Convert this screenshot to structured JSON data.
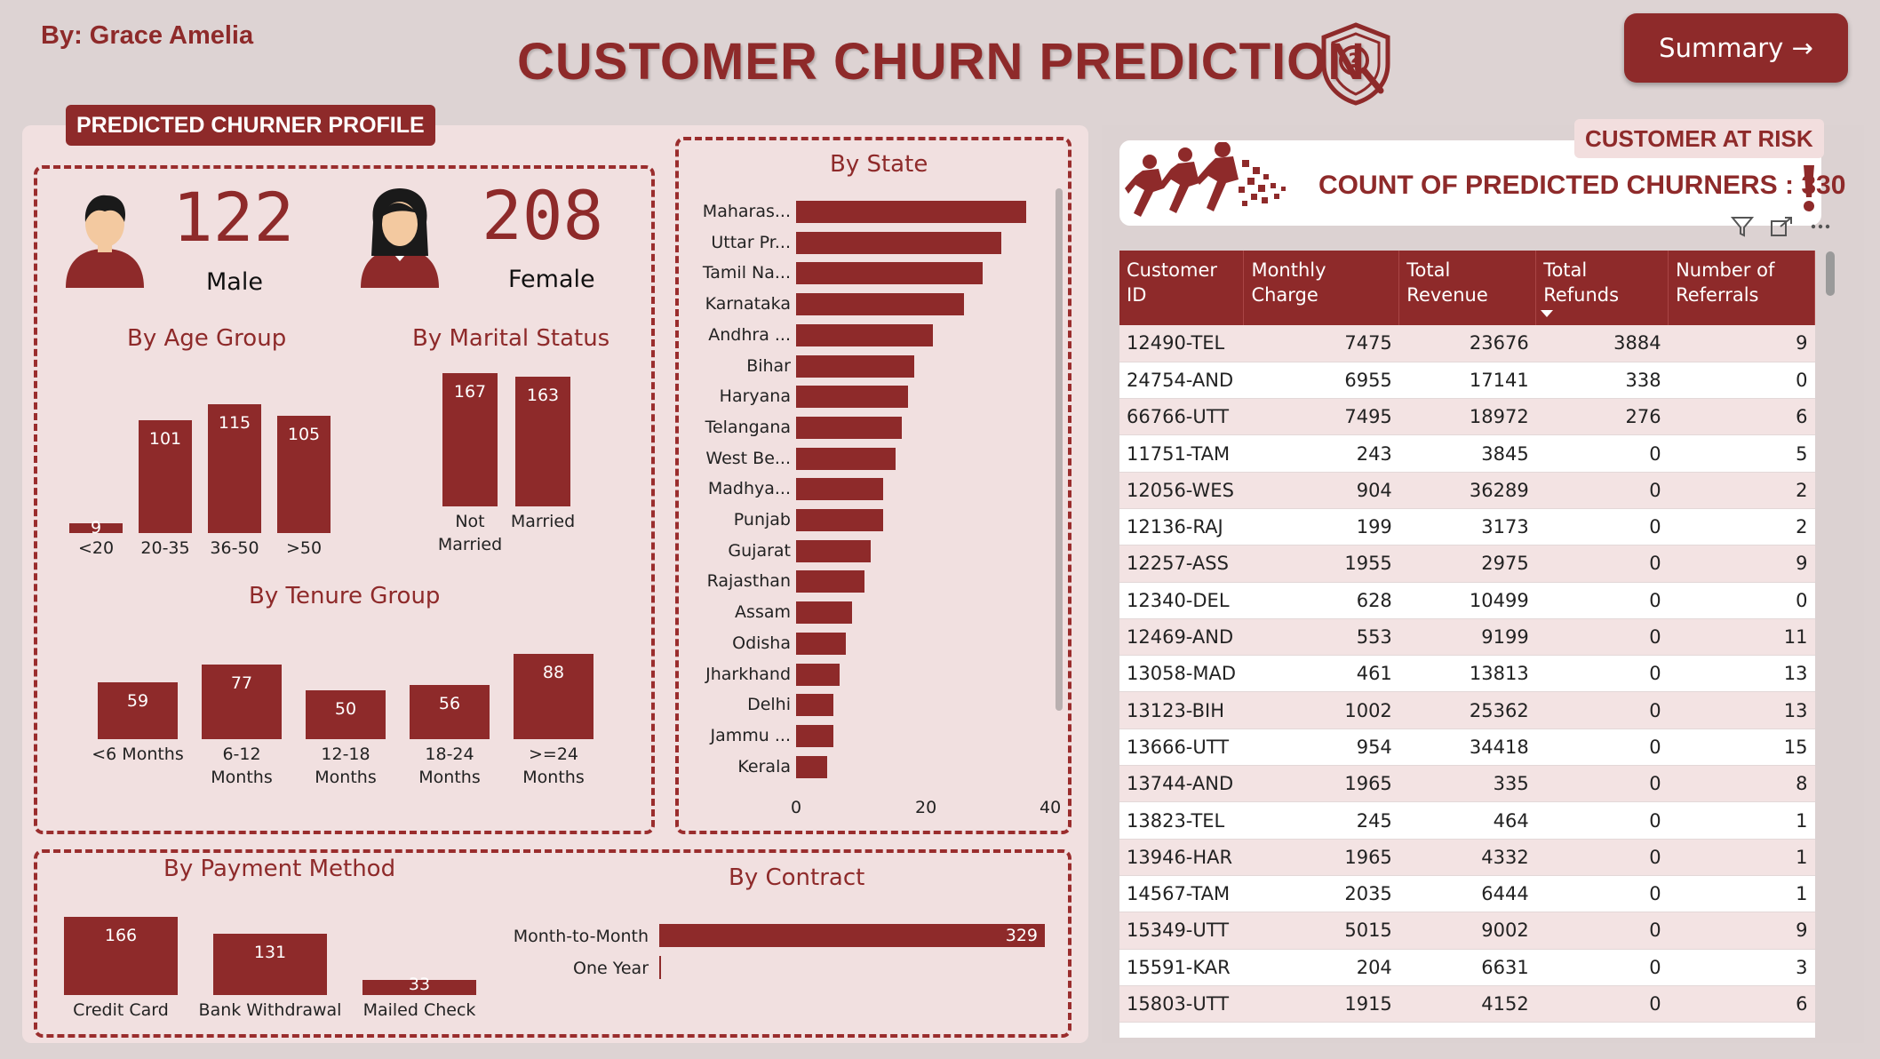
{
  "header": {
    "author": "By: Grace Amelia",
    "title": "CUSTOMER CHURN PREDICTION",
    "summary_button": "Summary →"
  },
  "profile": {
    "tag": "PREDICTED CHURNER PROFILE",
    "male_count": "122",
    "male_label": "Male",
    "female_count": "208",
    "female_label": "Female"
  },
  "chart_data": [
    {
      "type": "bar",
      "title": "By Age Group",
      "categories": [
        "<20",
        "20-35",
        "36-50",
        ">50"
      ],
      "values": [
        9,
        101,
        115,
        105
      ]
    },
    {
      "type": "bar",
      "title": "By Marital Status",
      "categories": [
        "Not Married",
        "Married"
      ],
      "values": [
        167,
        163
      ]
    },
    {
      "type": "bar",
      "title": "By Tenure Group",
      "categories": [
        "<6 Months",
        "6-12 Months",
        "12-18 Months",
        "18-24 Months",
        ">=24 Months"
      ],
      "values": [
        59,
        77,
        50,
        56,
        88
      ]
    },
    {
      "type": "bar",
      "orientation": "horizontal",
      "title": "By State",
      "categories": [
        "Maharas...",
        "Uttar Pr...",
        "Tamil Na...",
        "Karnataka",
        "Andhra ...",
        "Bihar",
        "Haryana",
        "Telangana",
        "West Be...",
        "Madhya...",
        "Punjab",
        "Gujarat",
        "Rajasthan",
        "Assam",
        "Odisha",
        "Jharkhand",
        "Delhi",
        "Jammu ...",
        "Kerala"
      ],
      "values": [
        37,
        33,
        30,
        27,
        22,
        19,
        18,
        17,
        16,
        14,
        14,
        12,
        11,
        9,
        8,
        7,
        6,
        6,
        5
      ],
      "xlim": [
        0,
        40
      ],
      "xticks": [
        "0",
        "20",
        "40"
      ]
    },
    {
      "type": "bar",
      "title": "By Payment Method",
      "categories": [
        "Credit Card",
        "Bank Withdrawal",
        "Mailed Check"
      ],
      "values": [
        166,
        131,
        33
      ]
    },
    {
      "type": "bar",
      "orientation": "horizontal",
      "title": "By Contract",
      "categories": [
        "Month-to-Month",
        "One Year"
      ],
      "values": [
        329,
        1
      ]
    }
  ],
  "labels": {
    "age_title": "By Age Group",
    "marital_title": "By Marital Status",
    "tenure_title": "By Tenure Group",
    "state_title": "By State",
    "payment_title": "By Payment Method",
    "contract_title": "By Contract"
  },
  "risk": {
    "tag": "CUSTOMER AT RISK",
    "headline": "COUNT OF PREDICTED CHURNERS : 330"
  },
  "table": {
    "columns": [
      "Customer ID",
      "Monthly Charge",
      "Total Revenue",
      "Total Refunds",
      "Number of Referrals"
    ],
    "rows": [
      [
        "12490-TEL",
        "7475",
        "23676",
        "3884",
        "9"
      ],
      [
        "24754-AND",
        "6955",
        "17141",
        "338",
        "0"
      ],
      [
        "66766-UTT",
        "7495",
        "18972",
        "276",
        "6"
      ],
      [
        "11751-TAM",
        "243",
        "3845",
        "0",
        "5"
      ],
      [
        "12056-WES",
        "904",
        "36289",
        "0",
        "2"
      ],
      [
        "12136-RAJ",
        "199",
        "3173",
        "0",
        "2"
      ],
      [
        "12257-ASS",
        "1955",
        "2975",
        "0",
        "9"
      ],
      [
        "12340-DEL",
        "628",
        "10499",
        "0",
        "0"
      ],
      [
        "12469-AND",
        "553",
        "9199",
        "0",
        "11"
      ],
      [
        "13058-MAD",
        "461",
        "13813",
        "0",
        "13"
      ],
      [
        "13123-BIH",
        "1002",
        "25362",
        "0",
        "13"
      ],
      [
        "13666-UTT",
        "954",
        "34418",
        "0",
        "15"
      ],
      [
        "13744-AND",
        "1965",
        "335",
        "0",
        "8"
      ],
      [
        "13823-TEL",
        "245",
        "464",
        "0",
        "1"
      ],
      [
        "13946-HAR",
        "1965",
        "4332",
        "0",
        "1"
      ],
      [
        "14567-TAM",
        "2035",
        "6444",
        "0",
        "1"
      ],
      [
        "15349-UTT",
        "5015",
        "9002",
        "0",
        "9"
      ],
      [
        "15591-KAR",
        "204",
        "6631",
        "0",
        "3"
      ],
      [
        "15803-UTT",
        "1915",
        "4152",
        "0",
        "6"
      ]
    ]
  },
  "colors": {
    "accent": "#8e2a2a",
    "background": "#ddd3d3",
    "panel": "#f1e0e0"
  },
  "icons": [
    "question-shield-icon",
    "male-avatar-icon",
    "female-avatar-icon",
    "runners-icon",
    "exclamation-icon",
    "filter-icon",
    "focus-mode-icon",
    "more-options-icon",
    "sort-desc-icon"
  ]
}
